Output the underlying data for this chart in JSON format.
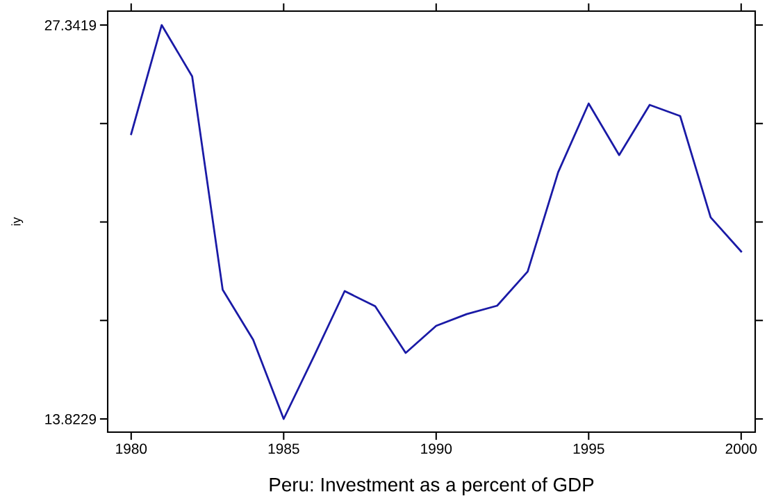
{
  "chart_data": {
    "type": "line",
    "title": "Peru: Investment as a percent of GDP",
    "ylabel": "iy",
    "x": [
      1980,
      1981,
      1982,
      1983,
      1984,
      1985,
      1986,
      1987,
      1988,
      1989,
      1990,
      1991,
      1992,
      1993,
      1994,
      1995,
      1996,
      1997,
      1998,
      1999,
      2000
    ],
    "series": [
      {
        "color": "#1a1aa6",
        "values": [
          23.6,
          27.3419,
          25.58,
          18.26,
          16.54,
          13.8229,
          15.99,
          18.21,
          17.69,
          16.09,
          17.02,
          17.42,
          17.71,
          18.88,
          22.29,
          24.65,
          22.88,
          24.6,
          24.22,
          20.74,
          19.57
        ]
      }
    ],
    "xlim": [
      1979.23,
      2000.46
    ],
    "xticks": [
      1980,
      1985,
      1990,
      1995,
      2000
    ],
    "ylim": [
      13.37,
      27.82
    ],
    "yticks": [
      {
        "value": 13.8229,
        "label": "13.8229"
      },
      {
        "value": 17.20265,
        "label": null
      },
      {
        "value": 20.5824,
        "label": null
      },
      {
        "value": 23.96215,
        "label": null
      },
      {
        "value": 27.3419,
        "label": "27.3419"
      }
    ],
    "grid": false,
    "marker": "none",
    "line_style": "solid"
  }
}
